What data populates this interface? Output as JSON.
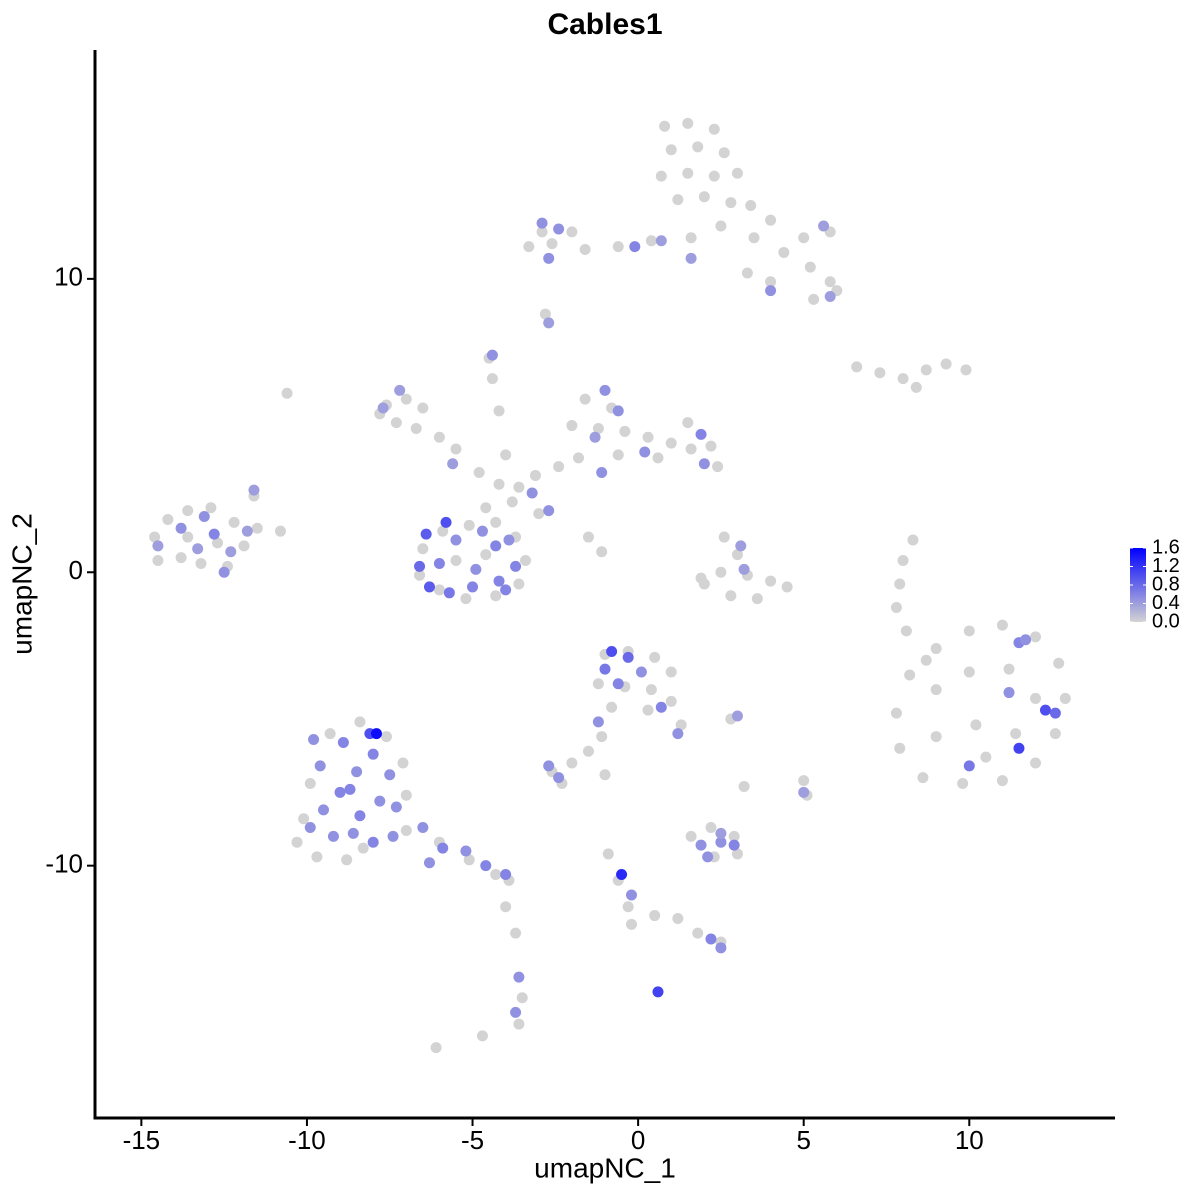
{
  "chart_data": {
    "type": "scatter",
    "title": "Cables1",
    "x_label": "umapNC_1",
    "y_label": "umapNC_2",
    "xlim": [
      -16.4,
      14.4
    ],
    "ylim": [
      -18.6,
      17.8
    ],
    "xticks": [
      -15,
      -10,
      -5,
      0,
      5,
      10
    ],
    "yticks": [
      -10,
      0,
      10
    ],
    "low_color": "#d3d3d3",
    "high_color": "#0000ff",
    "color_lim": [
      0,
      1.6
    ],
    "color_ticks": [
      {
        "value": 0,
        "label": "0.0"
      },
      {
        "value": 0.4,
        "label": "0.4"
      },
      {
        "value": 0.8,
        "label": "0.8"
      },
      {
        "value": 1.2,
        "label": "1.2"
      },
      {
        "value": 1.6,
        "label": "1.6"
      }
    ],
    "points": [
      [
        0.8,
        15.2,
        0
      ],
      [
        1.5,
        15.3,
        0
      ],
      [
        2.3,
        15.1,
        0
      ],
      [
        1.0,
        14.4,
        0
      ],
      [
        1.8,
        14.5,
        0
      ],
      [
        2.6,
        14.3,
        0
      ],
      [
        3.0,
        13.6,
        0
      ],
      [
        0.7,
        13.5,
        0
      ],
      [
        1.5,
        13.6,
        0
      ],
      [
        2.3,
        13.5,
        0
      ],
      [
        1.2,
        12.7,
        0
      ],
      [
        2.0,
        12.8,
        0
      ],
      [
        2.8,
        12.6,
        0
      ],
      [
        3.4,
        12.5,
        0
      ],
      [
        4.0,
        12.0,
        0
      ],
      [
        5.0,
        11.4,
        0
      ],
      [
        5.8,
        11.6,
        0
      ],
      [
        4.4,
        10.9,
        0
      ],
      [
        5.2,
        10.4,
        0
      ],
      [
        5.8,
        9.9,
        0
      ],
      [
        5.3,
        9.3,
        0
      ],
      [
        6.0,
        9.6,
        0
      ],
      [
        3.5,
        11.4,
        0
      ],
      [
        2.5,
        11.8,
        0
      ],
      [
        1.6,
        11.4,
        0
      ],
      [
        0.4,
        11.3,
        0
      ],
      [
        -0.6,
        11.1,
        0
      ],
      [
        -1.6,
        11.0,
        0
      ],
      [
        -2.6,
        11.2,
        0
      ],
      [
        -3.3,
        11.1,
        0
      ],
      [
        -2.9,
        11.6,
        0
      ],
      [
        -2.0,
        11.6,
        0
      ],
      [
        3.3,
        10.2,
        0
      ],
      [
        4.0,
        9.9,
        0
      ],
      [
        -2.8,
        8.8,
        0
      ],
      [
        -4.5,
        7.3,
        0
      ],
      [
        -4.4,
        6.6,
        0
      ],
      [
        -4.2,
        5.5,
        0
      ],
      [
        -7.6,
        5.7,
        0
      ],
      [
        -7.0,
        5.9,
        0
      ],
      [
        -6.5,
        5.6,
        0
      ],
      [
        -7.3,
        5.1,
        0
      ],
      [
        -6.7,
        4.9,
        0
      ],
      [
        -6.0,
        4.6,
        0
      ],
      [
        -5.5,
        4.2,
        0
      ],
      [
        -7.8,
        5.4,
        0
      ],
      [
        -4.8,
        3.4,
        0
      ],
      [
        -4.2,
        3.0,
        0
      ],
      [
        -3.6,
        2.9,
        0
      ],
      [
        -4.6,
        2.2,
        0
      ],
      [
        -3.8,
        2.4,
        0
      ],
      [
        -3.0,
        2.0,
        0
      ],
      [
        -3.1,
        3.3,
        0
      ],
      [
        -2.4,
        3.6,
        0
      ],
      [
        -4.0,
        4.0,
        0
      ],
      [
        -1.5,
        1.2,
        0
      ],
      [
        -1.1,
        0.7,
        0
      ],
      [
        -1.6,
        5.9,
        0
      ],
      [
        -0.8,
        5.6,
        0
      ],
      [
        -1.2,
        4.9,
        0
      ],
      [
        -0.4,
        4.8,
        0
      ],
      [
        0.3,
        4.6,
        0
      ],
      [
        1.0,
        4.4,
        0
      ],
      [
        1.6,
        4.2,
        0
      ],
      [
        2.2,
        4.3,
        0
      ],
      [
        2.4,
        3.6,
        0
      ],
      [
        -1.8,
        3.9,
        0
      ],
      [
        -0.6,
        4.0,
        0
      ],
      [
        0.6,
        3.9,
        0
      ],
      [
        1.5,
        5.1,
        0
      ],
      [
        -2.0,
        5.0,
        0
      ],
      [
        -6.5,
        0.8,
        0
      ],
      [
        -5.9,
        1.4,
        0
      ],
      [
        -5.1,
        1.6,
        0
      ],
      [
        -4.3,
        1.7,
        0
      ],
      [
        -3.7,
        1.2,
        0
      ],
      [
        -3.4,
        0.4,
        0
      ],
      [
        -3.6,
        -0.4,
        0
      ],
      [
        -4.3,
        -0.8,
        0
      ],
      [
        -5.2,
        -0.9,
        0
      ],
      [
        -6.0,
        -0.6,
        0
      ],
      [
        -6.6,
        -0.1,
        0
      ],
      [
        -5.5,
        0.4,
        0
      ],
      [
        -4.6,
        0.6,
        0
      ],
      [
        -14.6,
        1.2,
        0
      ],
      [
        -14.2,
        1.8,
        0
      ],
      [
        -13.6,
        2.1,
        0
      ],
      [
        -12.9,
        2.2,
        0
      ],
      [
        -12.2,
        1.7,
        0
      ],
      [
        -11.5,
        1.5,
        0
      ],
      [
        -10.8,
        1.4,
        0
      ],
      [
        -11.6,
        2.6,
        0
      ],
      [
        -14.5,
        0.4,
        0
      ],
      [
        -13.8,
        0.5,
        0
      ],
      [
        -13.2,
        0.3,
        0
      ],
      [
        -12.4,
        0.2,
        0
      ],
      [
        -13.6,
        1.2,
        0
      ],
      [
        -12.7,
        1.0,
        0
      ],
      [
        -11.9,
        0.9,
        0
      ],
      [
        2.6,
        1.2,
        0
      ],
      [
        3.0,
        0.6,
        0
      ],
      [
        2.5,
        0.0,
        0
      ],
      [
        3.3,
        -0.1,
        0
      ],
      [
        4.0,
        -0.3,
        0
      ],
      [
        4.5,
        -0.5,
        0
      ],
      [
        2.0,
        -0.4,
        0
      ],
      [
        2.8,
        -0.8,
        0
      ],
      [
        3.6,
        -0.9,
        0
      ],
      [
        1.9,
        -0.2,
        0
      ],
      [
        6.6,
        7.0,
        0
      ],
      [
        7.3,
        6.8,
        0
      ],
      [
        8.0,
        6.6,
        0
      ],
      [
        8.7,
        6.9,
        0
      ],
      [
        9.3,
        7.1,
        0
      ],
      [
        9.9,
        6.9,
        0
      ],
      [
        8.4,
        6.3,
        0
      ],
      [
        8.3,
        1.1,
        0
      ],
      [
        8.0,
        0.4,
        0
      ],
      [
        7.9,
        -0.4,
        0
      ],
      [
        7.8,
        -1.2,
        0
      ],
      [
        8.1,
        -2.0,
        0
      ],
      [
        -10.6,
        6.1,
        0
      ],
      [
        8.2,
        -3.5,
        0
      ],
      [
        9.0,
        -2.6,
        0
      ],
      [
        10.0,
        -2.0,
        0
      ],
      [
        11.0,
        -1.8,
        0
      ],
      [
        12.0,
        -2.2,
        0
      ],
      [
        12.7,
        -3.1,
        0
      ],
      [
        12.9,
        -4.3,
        0
      ],
      [
        12.6,
        -5.5,
        0
      ],
      [
        12.0,
        -6.5,
        0
      ],
      [
        11.0,
        -7.1,
        0
      ],
      [
        9.8,
        -7.2,
        0
      ],
      [
        8.6,
        -7.0,
        0
      ],
      [
        7.9,
        -6.0,
        0
      ],
      [
        7.8,
        -4.8,
        0
      ],
      [
        9.0,
        -4.0,
        0
      ],
      [
        10.0,
        -3.4,
        0
      ],
      [
        11.2,
        -3.3,
        0
      ],
      [
        12.0,
        -4.3,
        0
      ],
      [
        11.4,
        -5.5,
        0
      ],
      [
        10.2,
        -5.2,
        0
      ],
      [
        9.0,
        -5.6,
        0
      ],
      [
        10.5,
        -6.3,
        0
      ],
      [
        8.7,
        -3.0,
        0
      ],
      [
        -10.1,
        -8.4,
        0
      ],
      [
        -10.3,
        -9.2,
        0
      ],
      [
        -9.7,
        -9.7,
        0
      ],
      [
        -8.8,
        -9.8,
        0
      ],
      [
        -8.3,
        -9.4,
        0
      ],
      [
        -9.3,
        -5.5,
        0
      ],
      [
        -8.4,
        -5.1,
        0
      ],
      [
        -7.6,
        -5.6,
        0
      ],
      [
        -7.1,
        -6.5,
        0
      ],
      [
        -7.0,
        -7.6,
        0
      ],
      [
        -9.9,
        -7.2,
        0
      ],
      [
        -7.0,
        -8.8,
        0
      ],
      [
        -6.0,
        -9.2,
        0
      ],
      [
        -5.1,
        -9.8,
        0
      ],
      [
        -4.3,
        -10.3,
        0
      ],
      [
        -3.9,
        -10.5,
        0
      ],
      [
        -4.0,
        -11.4,
        0
      ],
      [
        -3.7,
        -12.3,
        0
      ],
      [
        -3.6,
        -15.4,
        0
      ],
      [
        -3.5,
        -14.5,
        0
      ],
      [
        -1.0,
        -2.8,
        0
      ],
      [
        -0.3,
        -2.7,
        0
      ],
      [
        0.5,
        -2.9,
        0
      ],
      [
        1.0,
        -3.4,
        0
      ],
      [
        -1.2,
        -3.8,
        0
      ],
      [
        -0.4,
        -3.9,
        0
      ],
      [
        0.4,
        -4.0,
        0
      ],
      [
        1.0,
        -4.4,
        0
      ],
      [
        1.3,
        -5.2,
        0
      ],
      [
        -0.8,
        -4.6,
        0
      ],
      [
        -1.1,
        -5.6,
        0
      ],
      [
        -1.5,
        -6.1,
        0
      ],
      [
        -2.0,
        -6.5,
        0
      ],
      [
        -2.6,
        -6.8,
        0
      ],
      [
        -2.3,
        -7.2,
        0
      ],
      [
        0.3,
        -4.7,
        0
      ],
      [
        1.6,
        -9.0,
        0
      ],
      [
        2.2,
        -8.7,
        0
      ],
      [
        2.9,
        -9.0,
        0
      ],
      [
        2.3,
        -9.7,
        0
      ],
      [
        3.0,
        -9.6,
        0
      ],
      [
        -0.9,
        -9.6,
        0
      ],
      [
        -0.6,
        -10.5,
        0
      ],
      [
        -0.3,
        -11.4,
        0
      ],
      [
        -0.2,
        -12.0,
        0
      ],
      [
        0.5,
        -11.7,
        0
      ],
      [
        1.2,
        -11.8,
        0
      ],
      [
        1.8,
        -12.3,
        0
      ],
      [
        2.5,
        -12.6,
        0
      ],
      [
        -6.1,
        -16.2,
        0
      ],
      [
        -4.7,
        -15.8,
        0
      ],
      [
        5.0,
        -7.1,
        0
      ],
      [
        5.1,
        -7.6,
        0
      ],
      [
        2.8,
        -5.0,
        0
      ],
      [
        3.2,
        -7.3,
        0
      ],
      [
        -1.0,
        -6.9,
        0
      ],
      [
        -2.9,
        11.9,
        0.5
      ],
      [
        -2.7,
        10.7,
        0.5
      ],
      [
        -0.1,
        11.1,
        0.6
      ],
      [
        0.7,
        11.3,
        0.4
      ],
      [
        1.6,
        10.7,
        0.4
      ],
      [
        5.6,
        11.8,
        0.4
      ],
      [
        4.0,
        9.6,
        0.5
      ],
      [
        5.8,
        9.4,
        0.4
      ],
      [
        -2.4,
        11.7,
        0.5
      ],
      [
        -2.7,
        8.5,
        0.4
      ],
      [
        -4.4,
        7.4,
        0.5
      ],
      [
        -7.2,
        6.2,
        0.4
      ],
      [
        -7.7,
        5.6,
        0.4
      ],
      [
        -5.6,
        3.7,
        0.4
      ],
      [
        -3.2,
        2.7,
        0.5
      ],
      [
        -2.7,
        2.1,
        0.5
      ],
      [
        -1.0,
        6.2,
        0.5
      ],
      [
        -1.3,
        4.6,
        0.4
      ],
      [
        -0.6,
        5.5,
        0.5
      ],
      [
        0.2,
        4.1,
        0.5
      ],
      [
        1.9,
        4.7,
        0.6
      ],
      [
        2.0,
        3.7,
        0.5
      ],
      [
        -1.1,
        3.4,
        0.5
      ],
      [
        -6.4,
        1.3,
        0.9
      ],
      [
        -6.6,
        0.2,
        0.8
      ],
      [
        -6.3,
        -0.5,
        0.9
      ],
      [
        -5.7,
        -0.7,
        0.7
      ],
      [
        -5.0,
        -0.5,
        0.6
      ],
      [
        -4.2,
        -0.3,
        0.6
      ],
      [
        -3.7,
        0.2,
        0.6
      ],
      [
        -3.9,
        1.1,
        0.5
      ],
      [
        -4.7,
        1.4,
        0.5
      ],
      [
        -5.5,
        1.1,
        0.5
      ],
      [
        -6.0,
        0.3,
        0.6
      ],
      [
        -4.9,
        0.1,
        0.5
      ],
      [
        -4.3,
        0.9,
        0.6
      ],
      [
        -5.8,
        1.7,
        1.0
      ],
      [
        -4.0,
        -0.6,
        0.6
      ],
      [
        -14.5,
        0.9,
        0.4
      ],
      [
        -13.8,
        1.5,
        0.5
      ],
      [
        -13.1,
        1.9,
        0.5
      ],
      [
        -12.8,
        1.3,
        0.6
      ],
      [
        -12.3,
        0.7,
        0.4
      ],
      [
        -13.3,
        0.8,
        0.4
      ],
      [
        -11.8,
        1.4,
        0.4
      ],
      [
        -12.5,
        0.0,
        0.5
      ],
      [
        -11.6,
        2.8,
        0.4
      ],
      [
        3.1,
        0.9,
        0.4
      ],
      [
        3.2,
        0.1,
        0.4
      ],
      [
        11.5,
        -2.4,
        0.6
      ],
      [
        11.2,
        -4.1,
        0.5
      ],
      [
        12.3,
        -4.7,
        1.0
      ],
      [
        12.6,
        -4.8,
        0.8
      ],
      [
        11.5,
        -6.0,
        1.1
      ],
      [
        10.0,
        -6.6,
        0.7
      ],
      [
        11.7,
        -2.3,
        0.5
      ],
      [
        -9.9,
        -8.7,
        0.5
      ],
      [
        -9.5,
        -8.1,
        0.5
      ],
      [
        -9.0,
        -7.5,
        0.6
      ],
      [
        -8.5,
        -6.8,
        0.5
      ],
      [
        -8.0,
        -6.2,
        0.6
      ],
      [
        -8.9,
        -5.8,
        0.6
      ],
      [
        -8.1,
        -5.5,
        1.0
      ],
      [
        -7.9,
        -5.5,
        1.5
      ],
      [
        -7.5,
        -6.9,
        0.5
      ],
      [
        -7.8,
        -7.8,
        0.5
      ],
      [
        -8.4,
        -8.3,
        0.6
      ],
      [
        -9.2,
        -9.0,
        0.5
      ],
      [
        -8.6,
        -8.9,
        0.5
      ],
      [
        -8.0,
        -9.2,
        0.6
      ],
      [
        -7.3,
        -8.0,
        0.5
      ],
      [
        -9.6,
        -6.6,
        0.5
      ],
      [
        -8.7,
        -7.4,
        0.6
      ],
      [
        -7.4,
        -9.0,
        0.5
      ],
      [
        -6.5,
        -8.7,
        0.5
      ],
      [
        -5.9,
        -9.4,
        0.6
      ],
      [
        -5.2,
        -9.5,
        0.5
      ],
      [
        -4.6,
        -10.0,
        0.6
      ],
      [
        -4.0,
        -10.3,
        0.6
      ],
      [
        -6.3,
        -9.9,
        0.5
      ],
      [
        -9.8,
        -5.7,
        0.5
      ],
      [
        -3.6,
        -13.8,
        0.5
      ],
      [
        -3.7,
        -15.0,
        0.5
      ],
      [
        -0.8,
        -2.7,
        1.0
      ],
      [
        -0.3,
        -2.9,
        0.8
      ],
      [
        -0.6,
        -3.8,
        0.6
      ],
      [
        0.1,
        -3.4,
        0.5
      ],
      [
        0.7,
        -4.6,
        0.6
      ],
      [
        1.2,
        -5.5,
        0.5
      ],
      [
        -1.2,
        -5.1,
        0.5
      ],
      [
        -2.7,
        -6.6,
        0.5
      ],
      [
        -2.4,
        -7.0,
        0.5
      ],
      [
        -1.0,
        -3.3,
        0.7
      ],
      [
        1.9,
        -9.3,
        0.5
      ],
      [
        2.5,
        -9.2,
        0.5
      ],
      [
        2.9,
        -9.3,
        0.6
      ],
      [
        2.1,
        -9.7,
        0.5
      ],
      [
        2.5,
        -8.9,
        0.4
      ],
      [
        -0.5,
        -10.3,
        1.3
      ],
      [
        -0.2,
        -11.0,
        0.5
      ],
      [
        2.2,
        -12.5,
        0.6
      ],
      [
        2.5,
        -12.8,
        0.5
      ],
      [
        0.6,
        -14.3,
        1.1
      ],
      [
        5.0,
        -7.5,
        0.4
      ],
      [
        3.0,
        -4.9,
        0.4
      ]
    ]
  }
}
